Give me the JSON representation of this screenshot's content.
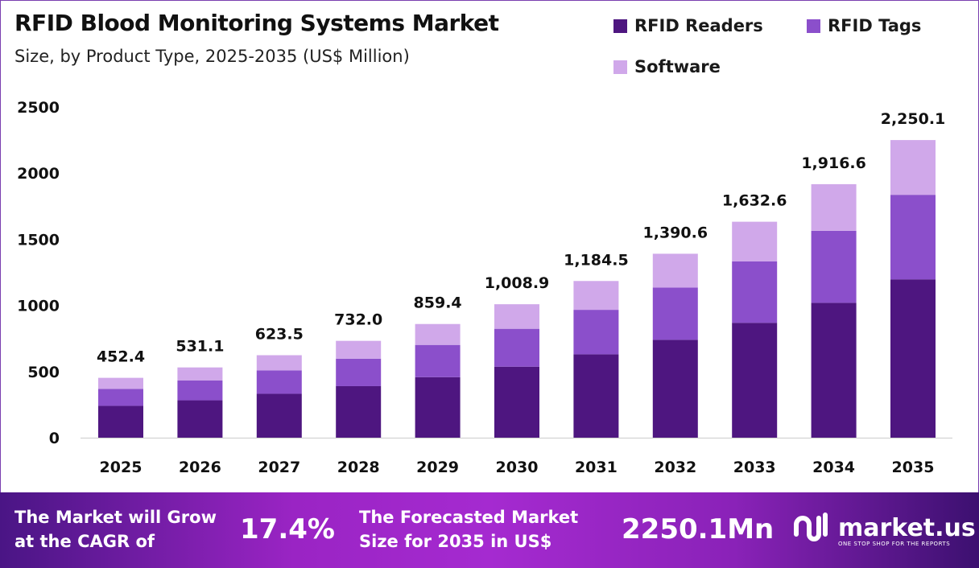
{
  "chart_data": {
    "type": "bar",
    "stacked": true,
    "title": "RFID Blood Monitoring Systems Market",
    "subtitle": "Size, by Product Type, 2025-2035 (US$ Million)",
    "categories": [
      "2025",
      "2026",
      "2027",
      "2028",
      "2029",
      "2030",
      "2031",
      "2032",
      "2033",
      "2034",
      "2035"
    ],
    "series": [
      {
        "name": "RFID Readers",
        "color": "#4e1680",
        "values": [
          240.7,
          282.5,
          331.7,
          389.4,
          457.2,
          536.7,
          630.2,
          739.8,
          868.5,
          1019.6,
          1197.1
        ]
      },
      {
        "name": "RFID Tags",
        "color": "#8b4fcb",
        "values": [
          128.5,
          150.8,
          177.1,
          207.9,
          244.1,
          286.5,
          336.4,
          394.9,
          463.7,
          544.3,
          639.0
        ]
      },
      {
        "name": "Software",
        "color": "#d0a8ea",
        "values": [
          83.2,
          97.8,
          114.7,
          134.7,
          158.1,
          185.7,
          217.9,
          255.9,
          300.4,
          352.7,
          414.0
        ]
      }
    ],
    "totals": [
      "452.4",
      "531.1",
      "623.5",
      "732.0",
      "859.4",
      "1,008.9",
      "1,184.5",
      "1,390.6",
      "1,632.6",
      "1,916.6",
      "2,250.1"
    ],
    "yticks": [
      "0",
      "500",
      "1000",
      "1500",
      "2000",
      "2500"
    ],
    "ylim": [
      0,
      2500
    ],
    "grid": false,
    "legend": "top-right"
  },
  "footer": {
    "cagr_label_1": "The Market will Grow",
    "cagr_label_2": "at the CAGR of",
    "cagr_value": "17.4%",
    "forecast_label_1": "The Forecasted Market",
    "forecast_label_2": "Size for 2035 in US$",
    "forecast_value": "2250.1Mn",
    "brand": "market.us",
    "brand_tagline": "ONE STOP SHOP FOR THE REPORTS"
  }
}
